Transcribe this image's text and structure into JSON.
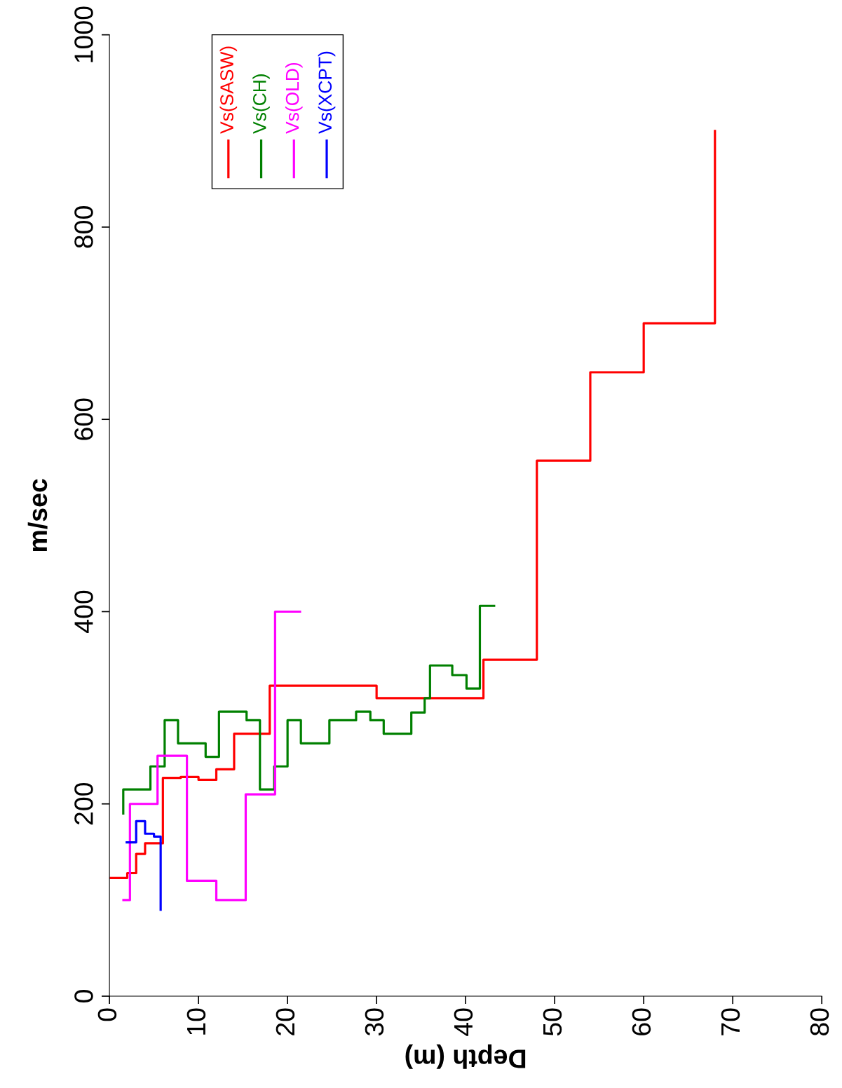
{
  "chart_data": {
    "type": "step",
    "xlabel": "Depth (m)",
    "ylabel": "m/sec",
    "xlim": [
      0,
      80
    ],
    "xticks": [
      0,
      10,
      20,
      30,
      40,
      50,
      60,
      70,
      80
    ],
    "ylim": [
      0,
      1000
    ],
    "yticks": [
      0,
      200,
      400,
      600,
      800,
      1000
    ],
    "grid": false,
    "legend": "top left",
    "line_style": "solid",
    "marker": "none",
    "series": [
      {
        "name": "Vs(SASW)",
        "color": "#ff0000",
        "x": [
          0,
          2,
          3,
          4,
          6,
          8,
          10,
          12,
          14,
          18,
          30,
          42,
          48,
          54,
          60,
          68
        ],
        "values": [
          123,
          128,
          148,
          159,
          227,
          228,
          225,
          236,
          273,
          323,
          310,
          350,
          557,
          649,
          700,
          900
        ]
      },
      {
        "name": "Vs(CH)",
        "color": "#008000",
        "x": [
          1.55,
          1.55,
          4.6,
          6.2,
          7.7,
          10.8,
          12.3,
          15.4,
          16.9,
          18.5,
          20.0,
          21.5,
          24.7,
          27.7,
          29.3,
          30.8,
          33.9,
          35.4,
          36.0,
          38.5,
          40.1,
          41.6,
          43.2
        ],
        "values": [
          190,
          215,
          239,
          287,
          263,
          249,
          296,
          287,
          215,
          239,
          287,
          263,
          287,
          296,
          287,
          273,
          295,
          310,
          344,
          334,
          320,
          406,
          406
        ]
      },
      {
        "name": "Vs(OLD)",
        "color": "#ff00ff",
        "x": [
          1.57,
          2.3,
          5.4,
          8.7,
          12.0,
          15.3,
          18.6,
          21.4
        ],
        "values": [
          100,
          200,
          250,
          120,
          100,
          210,
          400,
          400
        ]
      },
      {
        "name": "Vs(XCPT)",
        "color": "#0000ff",
        "x": [
          1.94,
          3.0,
          4.0,
          5.0,
          5.75
        ],
        "values": [
          160,
          182,
          169,
          166,
          90
        ]
      }
    ]
  }
}
